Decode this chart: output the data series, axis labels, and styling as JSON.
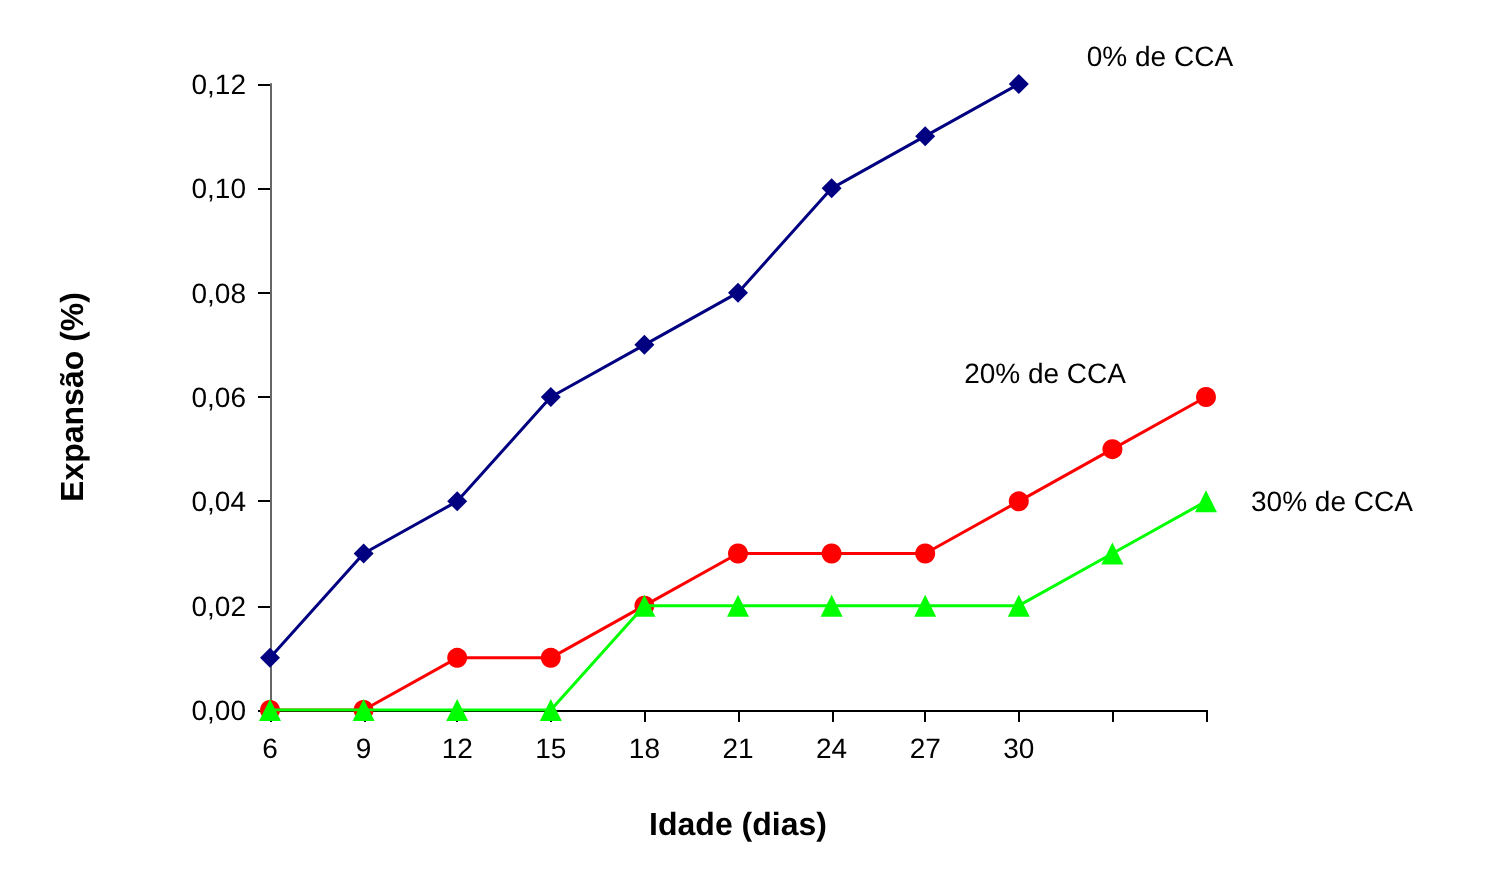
{
  "chart_data": {
    "type": "line",
    "xlabel": "Idade (dias)",
    "ylabel": "Expansão (%)",
    "categories": [
      "6",
      "9",
      "12",
      "15",
      "18",
      "21",
      "24",
      "27",
      "30",
      null,
      null
    ],
    "ylim": [
      0,
      0.12
    ],
    "yticks": [
      {
        "value": 0,
        "label": "0,00"
      },
      {
        "value": 0.02,
        "label": "0,02"
      },
      {
        "value": 0.04,
        "label": "0,04"
      },
      {
        "value": 0.06,
        "label": "0,06"
      },
      {
        "value": 0.08,
        "label": "0,08"
      },
      {
        "value": 0.1,
        "label": "0,10"
      },
      {
        "value": 0.12,
        "label": "0,12"
      }
    ],
    "grid": false,
    "legend": false,
    "series": [
      {
        "name": "0% de CCA",
        "color": "#000080",
        "marker": "diamond",
        "values": [
          0.01,
          0.03,
          0.04,
          0.06,
          0.07,
          0.08,
          0.1,
          0.11,
          0.12,
          null,
          null
        ]
      },
      {
        "name": "20% de CCA",
        "color": "#ff0000",
        "marker": "circle",
        "values": [
          0,
          0,
          0.01,
          0.01,
          0.02,
          0.03,
          0.03,
          0.03,
          0.04,
          0.05,
          0.06
        ]
      },
      {
        "name": "30% de CCA",
        "color": "#00ff00",
        "marker": "triangle",
        "values": [
          0,
          0,
          0,
          0,
          0.02,
          0.02,
          0.02,
          0.02,
          0.02,
          0.03,
          0.04
        ]
      }
    ]
  }
}
